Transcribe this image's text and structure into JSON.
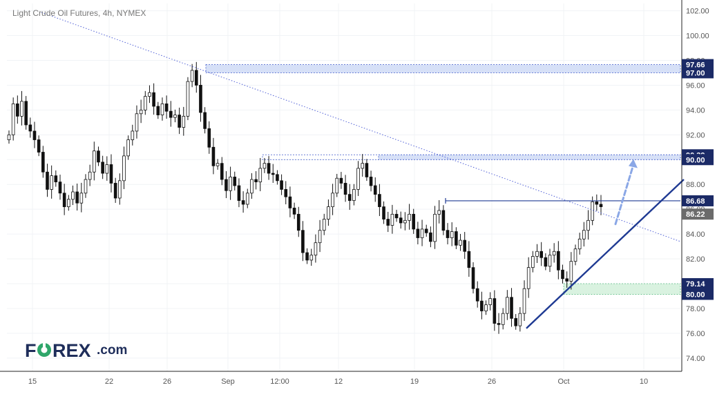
{
  "chart_data": {
    "type": "candlestick",
    "title": "Light Crude Oil Futures, 4h, NYMEX",
    "symbol": "Light Crude Oil Futures",
    "timeframe": "4h",
    "exchange": "NYMEX",
    "ylim": [
      72.5,
      103
    ],
    "y_ticks": [
      74,
      76,
      78,
      80,
      82,
      84,
      86,
      88,
      90,
      92,
      94,
      96,
      98,
      100,
      102
    ],
    "y_tick_labels": [
      "74.00",
      "76.00",
      "78.00",
      "80.00",
      "82.00",
      "84.00",
      "86.00",
      "88.00",
      "90.00",
      "92.00",
      "94.00",
      "96.00",
      "98.00",
      "100.00",
      "102.00"
    ],
    "x_tick_labels": [
      "15",
      "22",
      "26",
      "Sep",
      "12:00",
      "12",
      "19",
      "26",
      "Oct",
      "10"
    ],
    "grid": true,
    "colors": {
      "up_body": "#ffffff",
      "down_body": "#111111",
      "wick": "#111111",
      "trendline": "#1f3a93",
      "zone": "#d6e0f7",
      "support_zone": "#d9f2e0",
      "arrow": "#8aa7e6",
      "badge": "#1b2a66",
      "last_price_badge": "#6b6b6b"
    },
    "candles_close_path": [
      92.0,
      94.5,
      93.5,
      94.7,
      92.8,
      92.3,
      91.6,
      90.6,
      89.0,
      87.6,
      88.7,
      88.2,
      87.3,
      86.2,
      86.8,
      87.4,
      86.5,
      87.3,
      88.4,
      89.0,
      90.7,
      89.8,
      88.9,
      89.6,
      88.1,
      86.9,
      88.3,
      90.3,
      91.6,
      92.3,
      93.7,
      94.0,
      95.1,
      95.4,
      94.3,
      93.6,
      94.5,
      93.9,
      93.4,
      93.6,
      92.6,
      93.5,
      96.3,
      97.2,
      96.0,
      93.8,
      92.5,
      91.0,
      89.5,
      89.7,
      88.4,
      87.5,
      88.6,
      87.9,
      86.7,
      86.4,
      87.3,
      88.4,
      88.2,
      89.3,
      89.7,
      88.9,
      88.8,
      88.3,
      87.6,
      87.0,
      86.1,
      85.6,
      84.3,
      82.5,
      81.9,
      82.3,
      83.3,
      84.3,
      85.2,
      86.2,
      87.3,
      88.5,
      88.1,
      87.2,
      86.7,
      87.6,
      89.3,
      89.7,
      88.6,
      87.9,
      87.2,
      86.2,
      85.2,
      84.7,
      85.6,
      85.3,
      84.9,
      85.1,
      85.6,
      84.4,
      83.7,
      84.4,
      84.1,
      83.4,
      85.6,
      85.9,
      84.3,
      83.7,
      84.2,
      83.1,
      83.5,
      82.6,
      81.3,
      79.6,
      78.6,
      77.8,
      78.3,
      78.8,
      76.8,
      76.7,
      77.6,
      78.9,
      77.2,
      76.6,
      77.6,
      79.6,
      81.3,
      82.2,
      82.6,
      82.1,
      81.4,
      82.3,
      82.6,
      81.1,
      80.4,
      80.2,
      81.8,
      82.8,
      83.6,
      84.3,
      85.1,
      86.6,
      86.4,
      86.2
    ],
    "annotations": [
      {
        "type": "price_zone",
        "from": 97.0,
        "to": 97.66,
        "label_top": "97.66",
        "label_bottom": "97.00"
      },
      {
        "type": "price_zone",
        "from": 90.0,
        "to": 90.39,
        "label_top": "90.39",
        "label_bottom": "90.00"
      },
      {
        "type": "horizontal_line",
        "value": 86.68,
        "label": "86.68"
      },
      {
        "type": "last_price",
        "value": 86.22,
        "label": "86.22"
      },
      {
        "type": "support_zone",
        "from": 79.14,
        "to": 80.0,
        "label_top": "80.00",
        "label_bottom": "79.14"
      },
      {
        "type": "descending_trendline"
      },
      {
        "type": "ascending_trendline"
      },
      {
        "type": "projection_arrow",
        "target": 90.0
      }
    ]
  },
  "brand": {
    "logo_fo": "F",
    "logo_o": "O",
    "logo_rex": "REX",
    "logo_com": ".com"
  }
}
